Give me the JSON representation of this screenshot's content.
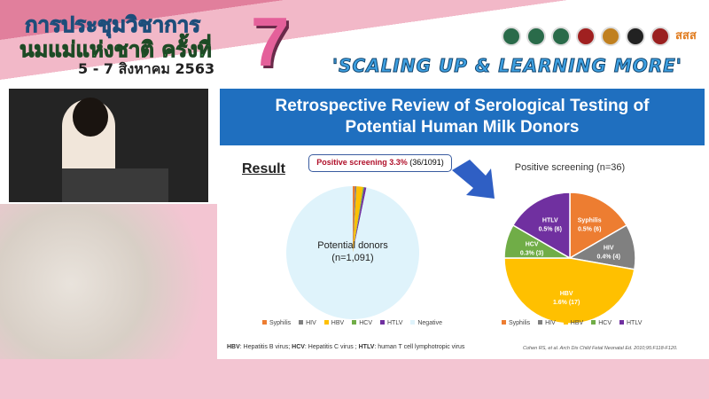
{
  "banner": {
    "line1": "การประชุมวิชาการ",
    "line2": "นมแม่แห่งชาติ ครั้งที่",
    "date": "5 - 7 สิงหาคม 2563",
    "number": "7",
    "tagline": "'SCALING UP & LEARNING MORE'",
    "logo_text": "สสส"
  },
  "slide": {
    "title_line1": "Retrospective Review of Serological Testing of",
    "title_line2": "Potential Human Milk Donors",
    "result_label": "Result",
    "callout_bold": "Positive screening 3.3%",
    "callout_rest": " (36/1091)",
    "left_center_line1": "Potential donors",
    "left_center_line2": "(n=1,091)",
    "right_title": "Positive screening (n=36)",
    "footnote_hbv": "HBV",
    "footnote_hbv_text": ": Hepatitis B virus; ",
    "footnote_hcv": "HCV",
    "footnote_hcv_text": ": Hepatitis C virus ; ",
    "footnote_htlv": "HTLV",
    "footnote_htlv_text": ": human T cell lymphotropic virus",
    "citation": "Cohen RS, et al. Arch Dis Child Fetal Neonatal Ed. 2010;95:F118-F120."
  },
  "chart_data": [
    {
      "type": "pie",
      "title": "",
      "categories": [
        "Syphilis",
        "HIV",
        "HBV",
        "HCV",
        "HTLV",
        "Negative"
      ],
      "values": [
        6,
        4,
        17,
        3,
        6,
        1055
      ],
      "colors": [
        "#ed7d31",
        "#808080",
        "#ffc000",
        "#70ad47",
        "#7030a0",
        "#dff3fb"
      ],
      "center_label": "Potential donors (n=1,091)",
      "legend": [
        "Syphilis",
        "HIV",
        "HBV",
        "HCV",
        "HTLV",
        "Negative"
      ],
      "legend_position": "bottom"
    },
    {
      "type": "pie",
      "title": "Positive screening (n=36)",
      "categories": [
        "Syphilis",
        "HIV",
        "HBV",
        "HCV",
        "HTLV"
      ],
      "values": [
        6,
        4,
        17,
        3,
        6
      ],
      "labels": [
        "0.5% (6)",
        "0.4% (4)",
        "1.6% (17)",
        "0.3% (3)",
        "0.5% (6)"
      ],
      "colors": [
        "#ed7d31",
        "#808080",
        "#ffc000",
        "#70ad47",
        "#7030a0"
      ],
      "legend": [
        "Syphilis",
        "HIV",
        "HBV",
        "HCV",
        "HTLV"
      ],
      "legend_position": "bottom"
    }
  ],
  "arrow_color": "#2f5fc4"
}
